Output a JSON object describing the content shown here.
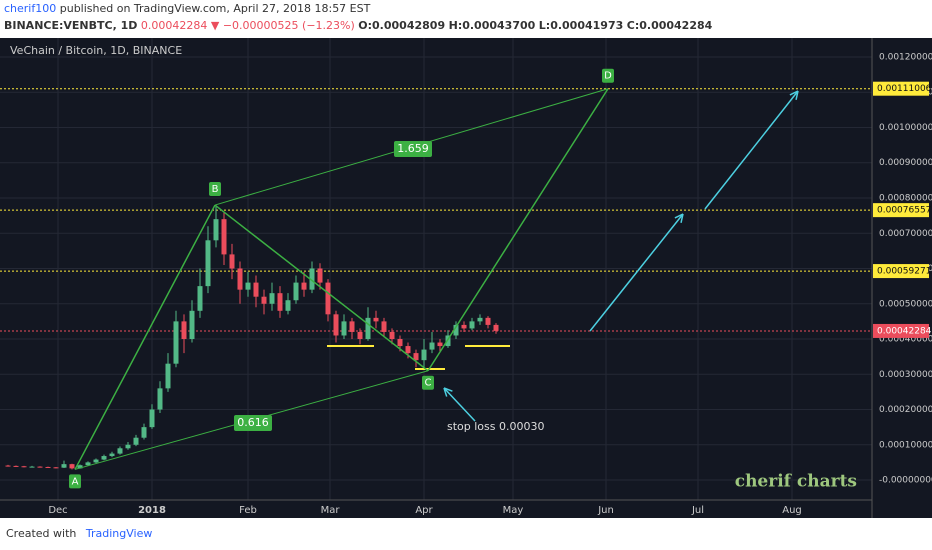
{
  "header": {
    "author": "cherif100",
    "published": "published on TradingView.com, April 27, 2018 18:57 EST",
    "symbol": "BINANCE:VENBTC, 1D",
    "last": "0.00042284",
    "arrow": "▼",
    "change": "−0.00000525 (−1.23%)",
    "open": "O:0.00042809",
    "high": "H:0.00043700",
    "low": "L:0.00041973",
    "close": "C:0.00042284"
  },
  "footer": {
    "created": "Created with",
    "brand": "TradingView"
  },
  "chart_data": {
    "type": "candlestick",
    "legend": "VeChain / Bitcoin, 1D, BINANCE",
    "watermark": "cherif charts",
    "up_color": "#53b987",
    "down_color": "#eb4d5c",
    "grid": true,
    "xlabels": [
      "Dec",
      "2018",
      "Feb",
      "Mar",
      "Apr",
      "May",
      "Jun",
      "Jul",
      "Aug"
    ],
    "ylim": [
      -5.67e-05,
      0.0012482
    ],
    "yticks": [
      {
        "value": 0,
        "label": "-0.00000000"
      },
      {
        "value": 0.0001,
        "label": "0.00010000"
      },
      {
        "value": 0.0002,
        "label": "0.00020000"
      },
      {
        "value": 0.0003,
        "label": "0.00030000"
      },
      {
        "value": 0.0004,
        "label": "0.00040000"
      },
      {
        "value": 0.0005,
        "label": "0.00050000"
      },
      {
        "value": 0.0006,
        "label": "0.00060000"
      },
      {
        "value": 0.0007,
        "label": "0.00070000"
      },
      {
        "value": 0.0008,
        "label": "0.00080000"
      },
      {
        "value": 0.0009,
        "label": "0.00090000"
      },
      {
        "value": 0.001,
        "label": "0.00100000"
      },
      {
        "value": 0.0011,
        "label": "0.00110000"
      },
      {
        "value": 0.0012,
        "label": "0.00120000"
      }
    ],
    "open": [
      4.1e-05,
      4e-05,
      3.9e-05,
      3.8e-05,
      3.8e-05,
      3.7e-05,
      3.6e-05,
      3.5e-05,
      4.5e-05,
      3.3e-05,
      4.2e-05,
      5e-05,
      5.8e-05,
      6.8e-05,
      7.5e-05,
      9e-05,
      0.0001,
      0.00012,
      0.00015,
      0.0002,
      0.00026,
      0.00033,
      0.00045,
      0.0004,
      0.00048,
      0.00055,
      0.00068,
      0.00074,
      0.00064,
      0.0006,
      0.00054,
      0.00056,
      0.00052,
      0.0005,
      0.00053,
      0.00048,
      0.00051,
      0.00056,
      0.00054,
      0.0006,
      0.00056,
      0.00047,
      0.00041,
      0.00045,
      0.00042,
      0.0004,
      0.00046,
      0.00045,
      0.00042,
      0.0004,
      0.00038,
      0.00036,
      0.00034,
      0.00037,
      0.00039,
      0.00038,
      0.00041,
      0.00044,
      0.00043,
      0.00045,
      0.00046,
      0.00044
    ],
    "high": [
      4.3e-05,
      4.1e-05,
      4e-05,
      4e-05,
      3.9e-05,
      3.8e-05,
      3.7e-05,
      5.5e-05,
      4.6e-05,
      4.4e-05,
      5.3e-05,
      6.1e-05,
      7.2e-05,
      8e-05,
      9.5e-05,
      0.000108,
      0.000128,
      0.00016,
      0.000215,
      0.00028,
      0.00036,
      0.00048,
      0.00047,
      0.00051,
      0.0006,
      0.00072,
      0.00078,
      0.00076,
      0.00067,
      0.00062,
      0.00059,
      0.00058,
      0.00054,
      0.00056,
      0.00055,
      0.00053,
      0.00058,
      0.00059,
      0.00062,
      0.000615,
      0.00057,
      0.00048,
      0.00047,
      0.00046,
      0.00043,
      0.00049,
      0.00048,
      0.00046,
      0.00043,
      0.00041,
      0.00039,
      0.00037,
      0.0004,
      0.00042,
      0.0004,
      0.000425,
      0.00045,
      0.00045,
      0.00046,
      0.00047,
      0.000465,
      0.000445
    ],
    "low": [
      3.8e-05,
      3.7e-05,
      3.6e-05,
      3.6e-05,
      3.5e-05,
      3.4e-05,
      3.3e-05,
      3.4e-05,
      3e-05,
      3.2e-05,
      4e-05,
      4.8e-05,
      5.6e-05,
      6.5e-05,
      7.2e-05,
      8.6e-05,
      9.6e-05,
      0.000115,
      0.000145,
      0.00019,
      0.00025,
      0.00032,
      0.00036,
      0.00039,
      0.00046,
      0.00053,
      0.00066,
      0.00061,
      0.00057,
      0.0005,
      0.00052,
      0.00049,
      0.00047,
      0.00048,
      0.00046,
      0.00047,
      0.0005,
      0.00052,
      0.00053,
      0.00054,
      0.00045,
      0.00039,
      0.0004,
      0.0004,
      0.000385,
      0.000395,
      0.00043,
      0.000405,
      0.000385,
      0.000365,
      0.000345,
      0.00032,
      0.00032,
      0.00036,
      0.000365,
      0.000375,
      0.0004,
      0.00042,
      0.000425,
      0.00044,
      0.00043,
      0.000415
    ],
    "close": [
      4e-05,
      3.9e-05,
      3.8e-05,
      3.8e-05,
      3.7e-05,
      3.6e-05,
      3.5e-05,
      4.5e-05,
      3.3e-05,
      4.2e-05,
      5e-05,
      5.8e-05,
      6.8e-05,
      7.5e-05,
      9e-05,
      0.0001,
      0.00012,
      0.00015,
      0.0002,
      0.00026,
      0.00033,
      0.00045,
      0.0004,
      0.00048,
      0.00055,
      0.00068,
      0.00074,
      0.00064,
      0.0006,
      0.00054,
      0.00056,
      0.00052,
      0.0005,
      0.00053,
      0.00048,
      0.00051,
      0.00056,
      0.00054,
      0.0006,
      0.00056,
      0.00047,
      0.00041,
      0.00045,
      0.00042,
      0.0004,
      0.00046,
      0.00045,
      0.00042,
      0.0004,
      0.00038,
      0.00036,
      0.00034,
      0.00037,
      0.00039,
      0.00038,
      0.00041,
      0.00044,
      0.00043,
      0.00045,
      0.00046,
      0.00044,
      0.000423
    ],
    "levels": [
      0.00111006,
      0.00076557,
      0.00059271
    ],
    "last_price": 0.00042284,
    "pattern": [
      {
        "label": "A",
        "value": 3e-05
      },
      {
        "label": "B",
        "value": 0.00078
      },
      {
        "label": "C",
        "value": 0.00031
      },
      {
        "label": "D",
        "value": 0.00111
      }
    ],
    "ratios": [
      1.659,
      0.616
    ],
    "supports": [
      0.00038,
      0.000315,
      0.00038
    ],
    "note": "stop loss 0.00030"
  }
}
